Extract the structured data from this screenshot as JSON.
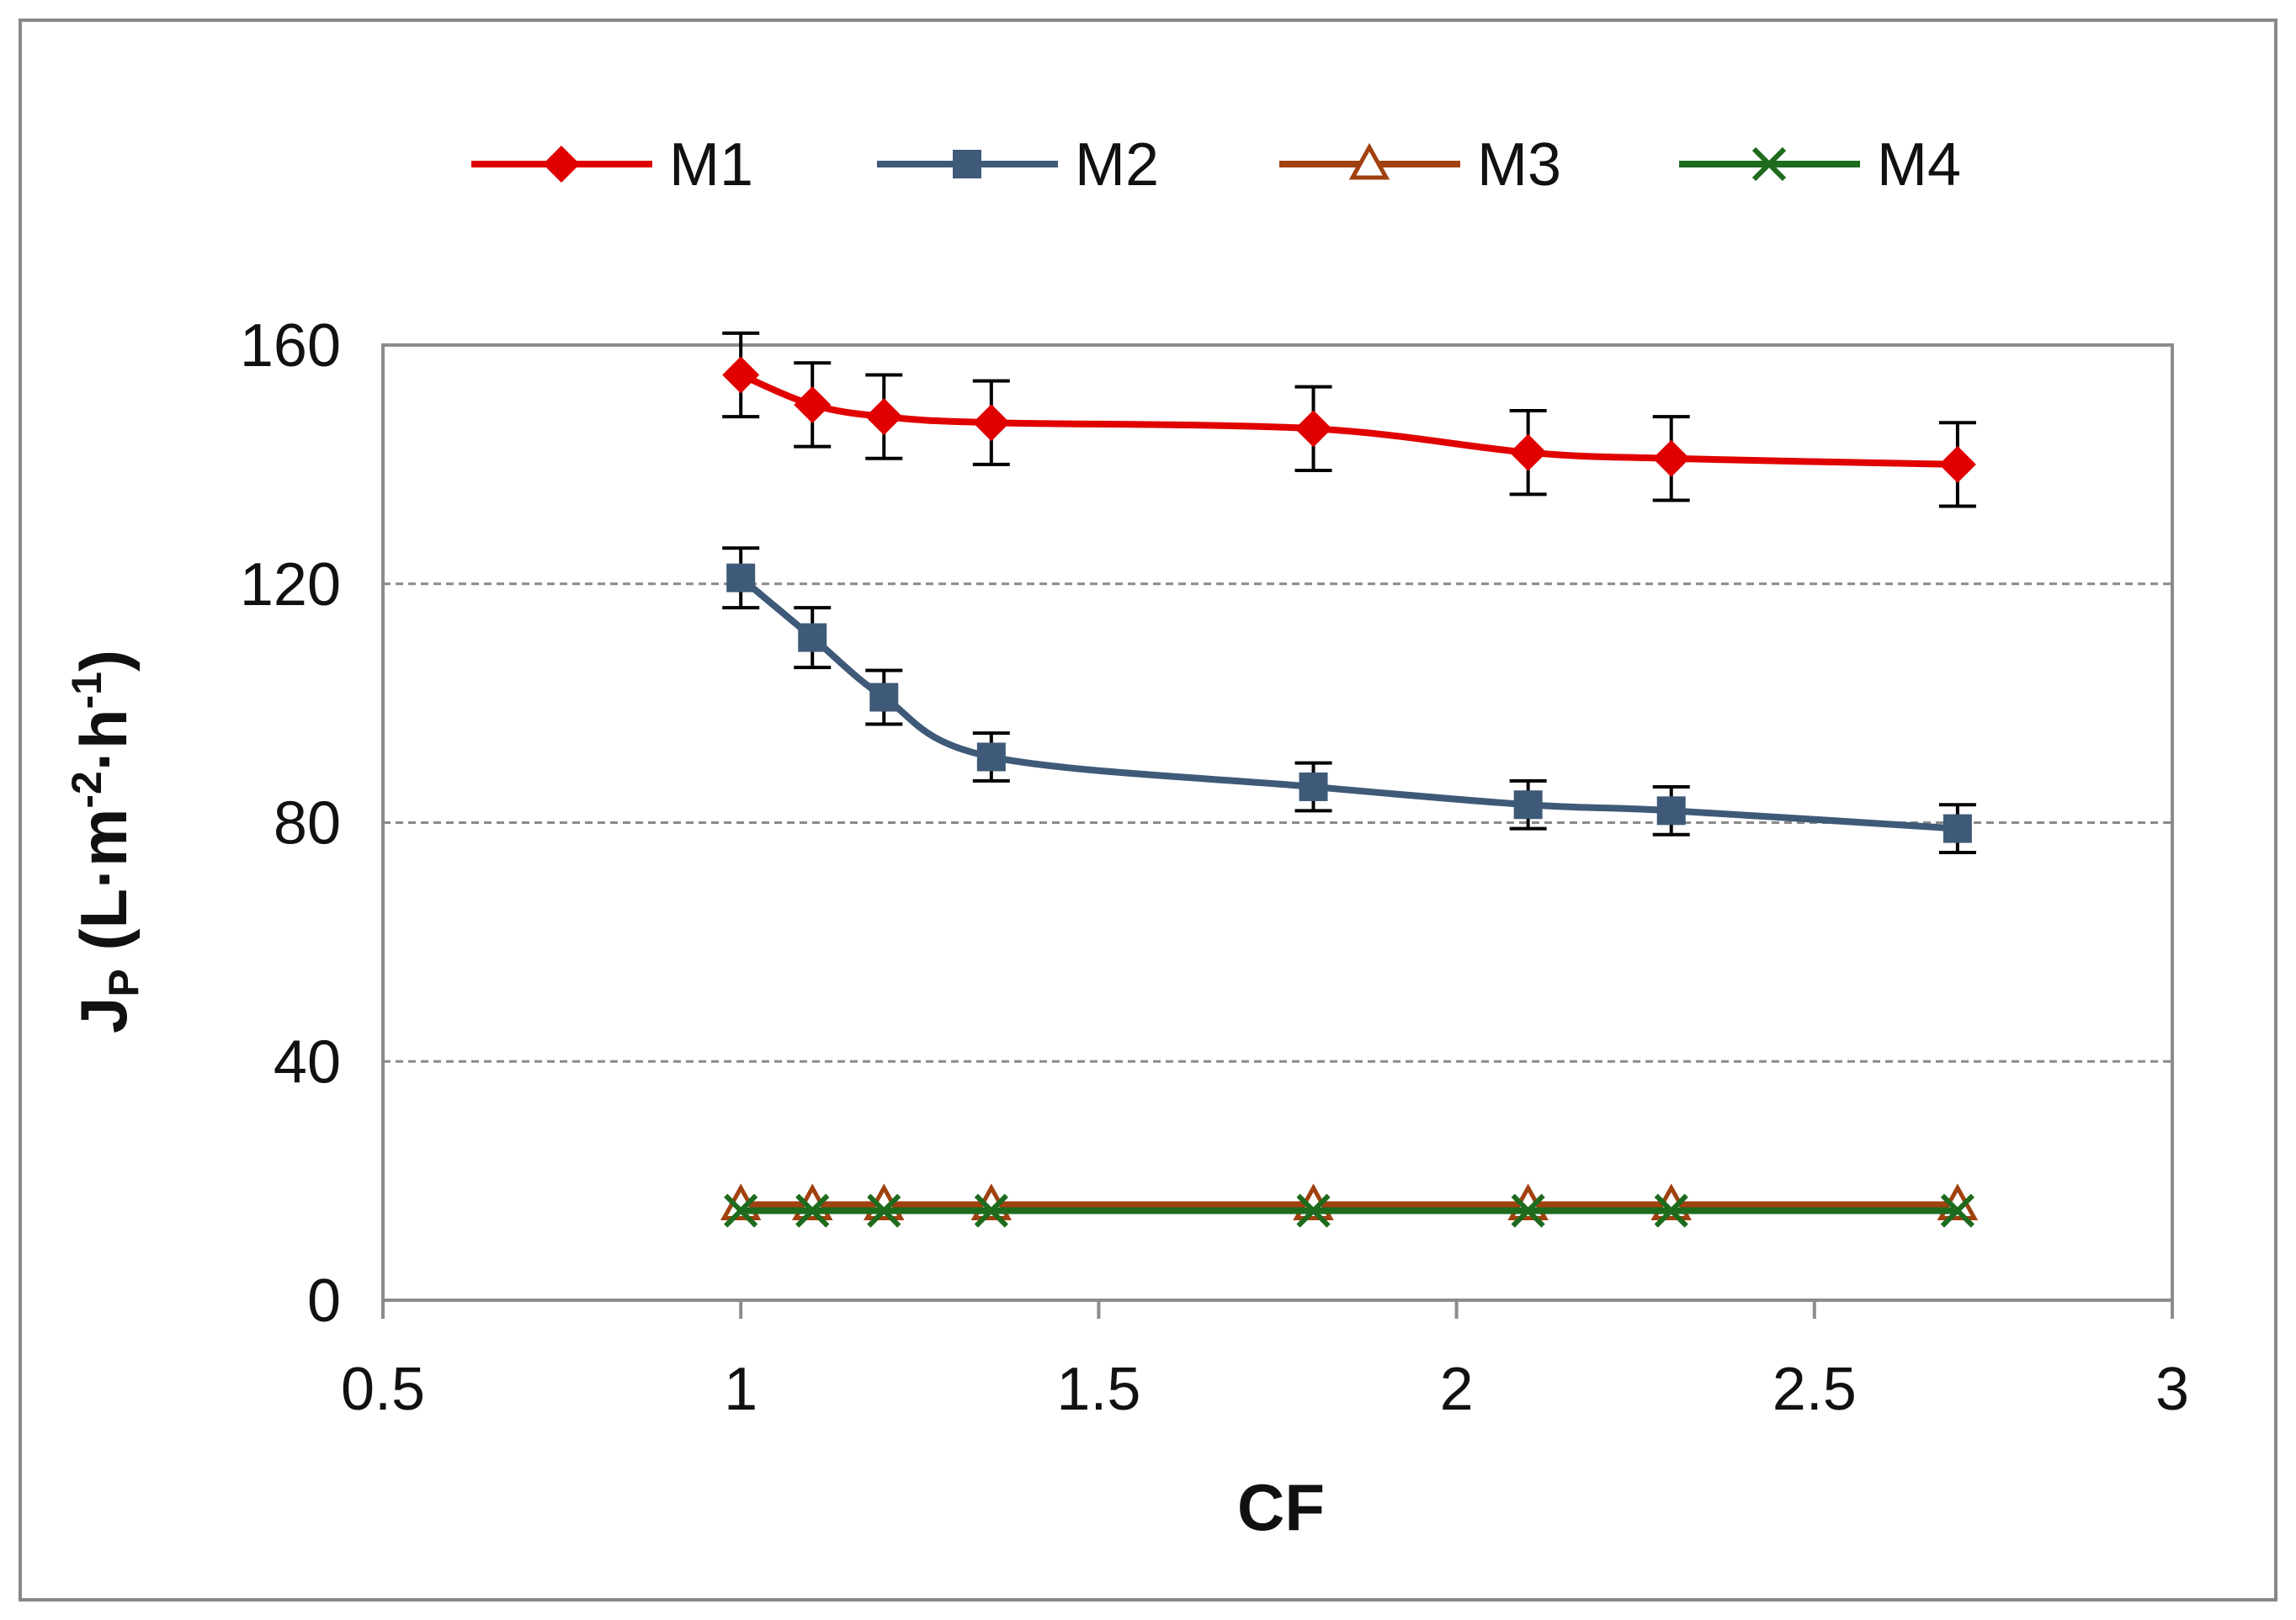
{
  "chart_data": {
    "type": "line",
    "title": "",
    "xlabel": "CF",
    "ylabel": {
      "main": "J",
      "sub": "P",
      "units_open": " (L·m",
      "exp1": "-2",
      "mid": "·h",
      "exp2": "-1",
      "units_close": ")"
    },
    "xlim": [
      0.5,
      3
    ],
    "ylim": [
      0,
      160
    ],
    "x_ticks": [
      0.5,
      1,
      1.5,
      2,
      2.5,
      3
    ],
    "x_tick_labels": [
      "0.5",
      "1",
      "1.5",
      "2",
      "2.5",
      "3"
    ],
    "y_ticks": [
      0,
      40,
      80,
      120,
      160
    ],
    "y_tick_labels": [
      "0",
      "40",
      "80",
      "120",
      "160"
    ],
    "grid": "horizontal dashed",
    "legend_position": "top",
    "x": [
      1.0,
      1.1,
      1.2,
      1.35,
      1.8,
      2.1,
      2.3,
      2.7
    ],
    "series": [
      {
        "name": "M1",
        "color": "#e00000",
        "marker": "diamond",
        "values": [
          155,
          150,
          148,
          147,
          146,
          142,
          141,
          140
        ],
        "errors": [
          7,
          7,
          7,
          7,
          7,
          7,
          7,
          7
        ]
      },
      {
        "name": "M2",
        "color": "#3f5a78",
        "marker": "square",
        "values": [
          121,
          111,
          101,
          91,
          86,
          83,
          82,
          79
        ],
        "errors": [
          5,
          5,
          4.5,
          4,
          4,
          4,
          4,
          4
        ]
      },
      {
        "name": "M3",
        "color": "#a0410f",
        "marker": "triangle",
        "values": [
          16,
          16,
          16,
          16,
          16,
          16,
          16,
          16
        ]
      },
      {
        "name": "M4",
        "color": "#1e6b1e",
        "marker": "x",
        "values": [
          15,
          15,
          15,
          15,
          15,
          15,
          15,
          15
        ]
      }
    ]
  }
}
